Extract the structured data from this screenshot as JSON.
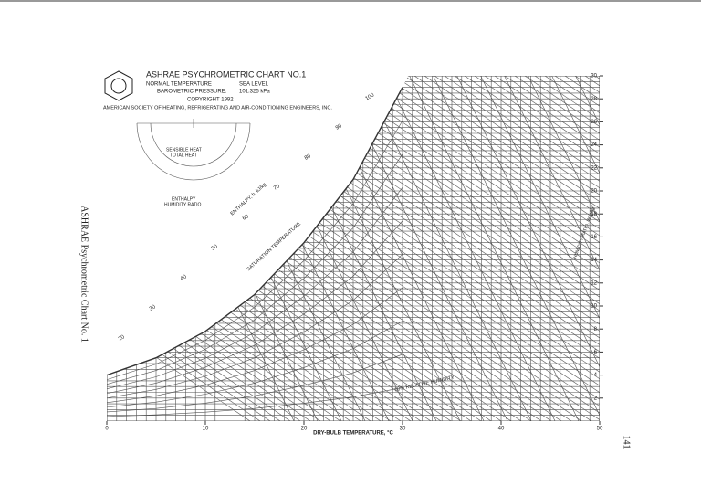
{
  "chart_data": {
    "type": "psychrometric",
    "title": "ASHRAE PSYCHROMETRIC CHART NO.1",
    "conditions": [
      "NORMAL TEMPERATURE",
      "SEA LEVEL"
    ],
    "pressure_label": "BAROMETRIC PRESSURE:",
    "pressure_value": "101.325 kPa",
    "copyright": "COPYRIGHT 1992",
    "publisher": "AMERICAN SOCIETY OF HEATING, REFRIGERATING AND AIR-CONDITIONING ENGINEERS, INC.",
    "side_title": "ASHRAE Psychrometric Chart No. 1",
    "page_number": "141",
    "xlabel": "DRY-BULB TEMPERATURE, °C",
    "xlim": [
      0,
      50
    ],
    "xticks": [
      0,
      10,
      20,
      30,
      40,
      50
    ],
    "ylim": [
      0,
      30
    ],
    "yticks": [
      2,
      4,
      6,
      8,
      10,
      12,
      14,
      16,
      18,
      20,
      22,
      24,
      26,
      28,
      30
    ],
    "ylabel": "HUMIDITY RATIO, W, g/kg",
    "saturation_label": "SATURATION TEMPERATURE",
    "enthalpy_label": "ENTHALPY, h, kJ/kg",
    "enthalpy_ticks": [
      20,
      30,
      40,
      50,
      60,
      70,
      80,
      90,
      100
    ],
    "rh_label": "10% RELATIVE HUMIDITY",
    "protractor_labels": [
      "SENSIBLE HEAT",
      "TOTAL HEAT",
      "ENTHALPY",
      "HUMIDITY RATIO"
    ],
    "series": [
      {
        "name": "saturation",
        "color": "#333333",
        "x": [
          0,
          5,
          10,
          15,
          20,
          25,
          30
        ],
        "values": [
          4,
          5.5,
          7.8,
          11,
          15.5,
          21,
          29
        ]
      }
    ]
  }
}
